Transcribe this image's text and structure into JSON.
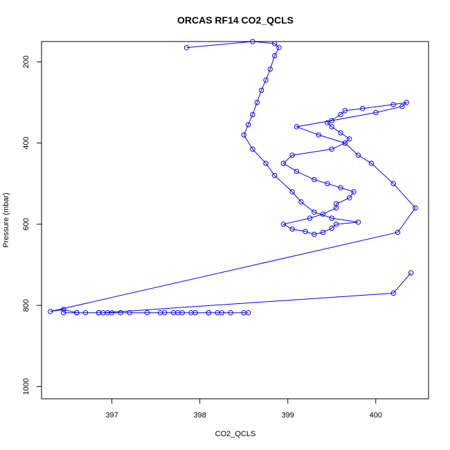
{
  "chart_data": {
    "type": "line",
    "title": "ORCAS RF14 CO2_QCLS",
    "xlabel": "CO2_QCLS",
    "ylabel": "Pressure (mbar)",
    "xlim": [
      396.2,
      400.6
    ],
    "ylim": [
      1030,
      150
    ],
    "y_reversed": true,
    "x_ticks": [
      397,
      398,
      399,
      400
    ],
    "y_ticks": [
      200,
      400,
      600,
      800,
      1000
    ],
    "grid": false,
    "legend": "none",
    "marker": "open-circle",
    "color": "#0000ff",
    "series": [
      {
        "x": [
          397.85,
          398.6,
          398.85,
          398.9,
          398.85,
          398.8,
          398.75,
          398.7,
          398.65,
          398.6,
          398.55,
          398.5,
          398.6,
          398.75,
          398.85,
          399.05,
          399.15,
          399.3,
          399.5,
          399.8,
          399.55,
          399.5,
          399.4,
          399.3,
          399.2,
          399.05,
          398.95,
          399.25,
          399.4,
          399.55,
          399.55,
          399.7,
          399.75,
          399.6,
          399.45,
          399.3,
          399.1,
          398.95,
          399.05,
          399.5,
          399.65,
          399.7,
          399.6,
          399.5,
          399.45,
          399.6,
          399.65,
          399.85,
          400.2,
          400.35,
          400.3,
          400.0,
          399.5,
          399.1,
          399.35,
          399.65,
          399.8,
          399.95,
          400.2,
          400.45,
          400.25,
          396.3,
          396.45,
          396.6,
          396.7,
          396.85,
          396.95,
          397.0,
          397.2,
          397.4,
          397.55,
          397.7,
          397.75,
          397.8,
          397.9,
          398.1,
          398.2,
          398.35,
          398.5,
          398.55,
          398.25,
          398.1,
          397.95,
          397.6,
          397.1,
          396.45,
          396.6,
          396.85,
          396.9,
          400.2,
          400.4
        ],
        "y": [
          165,
          150,
          155,
          165,
          185,
          218,
          245,
          270,
          300,
          330,
          355,
          380,
          415,
          450,
          480,
          520,
          545,
          570,
          585,
          595,
          600,
          610,
          620,
          625,
          618,
          612,
          600,
          585,
          575,
          560,
          550,
          535,
          520,
          510,
          500,
          490,
          470,
          450,
          430,
          415,
          400,
          390,
          375,
          360,
          350,
          330,
          320,
          315,
          305,
          300,
          310,
          325,
          345,
          360,
          380,
          400,
          430,
          450,
          500,
          560,
          620,
          815,
          810,
          818,
          818,
          818,
          818,
          818,
          818,
          818,
          818,
          818,
          818,
          818,
          818,
          818,
          818,
          818,
          818,
          818,
          818,
          818,
          818,
          818,
          818,
          818,
          818,
          818,
          818,
          770,
          720
        ]
      }
    ]
  }
}
